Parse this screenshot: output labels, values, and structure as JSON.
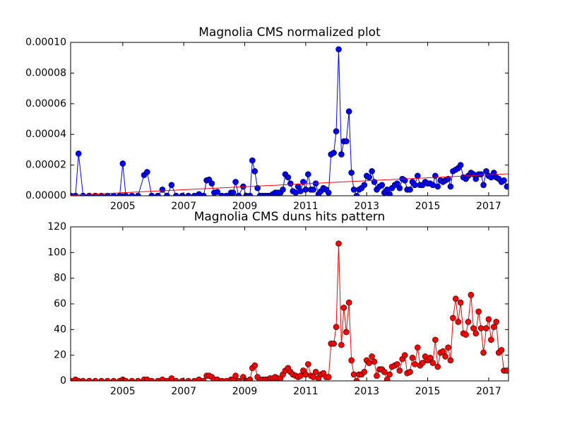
{
  "chart_data": [
    {
      "type": "line",
      "title": "Magnolia CMS normalized plot",
      "xlim": [
        2003.29,
        2017.65
      ],
      "xticks": [
        2005,
        2007,
        2009,
        2011,
        2013,
        2015,
        2017
      ],
      "ylim": [
        0,
        0.0001
      ],
      "yticks": [
        {
          "value": 0,
          "label": "0.00000"
        },
        {
          "value": 2e-05,
          "label": "0.00002"
        },
        {
          "value": 4e-05,
          "label": "0.00004"
        },
        {
          "value": 6e-05,
          "label": "0.00006"
        },
        {
          "value": 8e-05,
          "label": "0.00008"
        },
        {
          "value": 0.0001,
          "label": "0.00010"
        }
      ],
      "grid": false,
      "series": [
        {
          "color": "#0000ff",
          "markers": true,
          "x": [
            2003.3,
            2003.45,
            2003.55,
            2003.7,
            2003.9,
            2004.1,
            2004.3,
            2004.5,
            2004.7,
            2004.9,
            2005.0,
            2005.1,
            2005.3,
            2005.5,
            2005.7,
            2005.8,
            2005.95,
            2006.15,
            2006.3,
            2006.45,
            2006.6,
            2006.75,
            2006.95,
            2007.15,
            2007.35,
            2007.5,
            2007.65,
            2007.75,
            2007.83,
            2007.92,
            2008.0,
            2008.1,
            2008.25,
            2008.4,
            2008.55,
            2008.62,
            2008.7,
            2008.8,
            2008.95,
            2009.05,
            2009.17,
            2009.25,
            2009.33,
            2009.42,
            2009.5,
            2009.58,
            2009.67,
            2009.75,
            2009.83,
            2009.92,
            2010.0,
            2010.08,
            2010.17,
            2010.25,
            2010.33,
            2010.42,
            2010.5,
            2010.58,
            2010.67,
            2010.75,
            2010.83,
            2010.92,
            2011.0,
            2011.08,
            2011.17,
            2011.25,
            2011.33,
            2011.42,
            2011.5,
            2011.58,
            2011.67,
            2011.75,
            2011.83,
            2011.92,
            2012.0,
            2012.08,
            2012.17,
            2012.25,
            2012.33,
            2012.42,
            2012.5,
            2012.58,
            2012.67,
            2012.75,
            2012.83,
            2012.92,
            2013.0,
            2013.08,
            2013.17,
            2013.25,
            2013.33,
            2013.42,
            2013.5,
            2013.58,
            2013.67,
            2013.75,
            2013.83,
            2013.92,
            2014.0,
            2014.08,
            2014.17,
            2014.25,
            2014.33,
            2014.42,
            2014.5,
            2014.58,
            2014.67,
            2014.75,
            2014.83,
            2014.92,
            2015.0,
            2015.08,
            2015.17,
            2015.25,
            2015.33,
            2015.42,
            2015.5,
            2015.58,
            2015.67,
            2015.75,
            2015.83,
            2015.92,
            2016.0,
            2016.08,
            2016.17,
            2016.25,
            2016.33,
            2016.42,
            2016.5,
            2016.58,
            2016.67,
            2016.75,
            2016.83,
            2016.92,
            2017.0,
            2017.08,
            2017.17,
            2017.25,
            2017.33,
            2017.42,
            2017.5,
            2017.6
          ],
          "values": [
            0,
            0,
            2.75e-05,
            0,
            0,
            0,
            0,
            0,
            0,
            0,
            2.1e-05,
            0,
            0,
            0,
            1.35e-05,
            1.55e-05,
            0,
            0,
            4e-06,
            0,
            7e-06,
            0,
            0,
            0,
            0,
            1e-06,
            0,
            1e-05,
            1.05e-05,
            8e-06,
            2e-06,
            2.5e-06,
            0,
            0,
            2e-06,
            2e-06,
            9e-06,
            0,
            6e-06,
            0,
            0,
            2.3e-05,
            1.6e-05,
            5e-06,
            0,
            0,
            0,
            0,
            0,
            1e-06,
            2e-06,
            2e-06,
            2e-06,
            4e-06,
            1.4e-05,
            1.2e-05,
            8e-06,
            3e-06,
            2e-06,
            6e-06,
            3e-06,
            9e-06,
            4e-06,
            1.4e-05,
            4e-06,
            4e-06,
            8e-06,
            1e-06,
            3e-06,
            5e-06,
            4e-06,
            2e-06,
            2.7e-05,
            2.8e-05,
            4.2e-05,
            9.55e-05,
            2.7e-05,
            3.55e-05,
            3.55e-05,
            5.5e-05,
            1.5e-05,
            4e-06,
            0,
            4e-06,
            5e-06,
            7e-06,
            1.3e-05,
            1.2e-05,
            1.6e-05,
            9e-06,
            4e-06,
            6e-06,
            7e-06,
            2e-06,
            4e-06,
            1e-06,
            5e-06,
            7e-06,
            8e-06,
            5e-06,
            1.1e-05,
            1e-05,
            4e-06,
            4e-06,
            9e-06,
            7e-06,
            1.3e-05,
            7e-06,
            7e-06,
            9e-06,
            8e-06,
            8e-06,
            7e-06,
            1.3e-05,
            6e-06,
            1e-05,
            9e-06,
            1e-05,
            1.1e-05,
            6e-06,
            1.6e-05,
            1.7e-05,
            1.8e-05,
            2e-05,
            1.2e-05,
            1.1e-05,
            1.3e-05,
            1.5e-05,
            1.4e-05,
            1.1e-05,
            1.4e-05,
            1.4e-05,
            7e-06,
            1.6e-05,
            1.3e-05,
            1.2e-05,
            1.5e-05,
            1.2e-05,
            1.1e-05,
            9e-06,
            1e-05,
            6e-06
          ]
        },
        {
          "color": "#ff0000",
          "markers": false,
          "x": [
            2003.29,
            2017.65
          ],
          "values": [
            3e-07,
            1.43e-05
          ]
        }
      ]
    },
    {
      "type": "line",
      "title": "Magnolia CMS duns hits pattern",
      "xlim": [
        2003.29,
        2017.65
      ],
      "xticks": [
        2005,
        2007,
        2009,
        2011,
        2013,
        2015,
        2017
      ],
      "ylim": [
        0,
        120
      ],
      "yticks": [
        0,
        20,
        40,
        60,
        80,
        100,
        120
      ],
      "grid": false,
      "series": [
        {
          "color": "#ff0000",
          "markers": true,
          "x": [
            2003.3,
            2003.45,
            2003.55,
            2003.7,
            2003.9,
            2004.1,
            2004.3,
            2004.5,
            2004.7,
            2004.9,
            2005.0,
            2005.1,
            2005.3,
            2005.5,
            2005.7,
            2005.8,
            2005.95,
            2006.15,
            2006.3,
            2006.45,
            2006.6,
            2006.75,
            2006.95,
            2007.15,
            2007.35,
            2007.5,
            2007.65,
            2007.75,
            2007.83,
            2007.92,
            2008.0,
            2008.1,
            2008.25,
            2008.4,
            2008.55,
            2008.62,
            2008.7,
            2008.8,
            2008.95,
            2009.05,
            2009.17,
            2009.25,
            2009.33,
            2009.42,
            2009.5,
            2009.58,
            2009.67,
            2009.75,
            2009.83,
            2009.92,
            2010.0,
            2010.08,
            2010.17,
            2010.25,
            2010.33,
            2010.42,
            2010.5,
            2010.58,
            2010.67,
            2010.75,
            2010.83,
            2010.92,
            2011.0,
            2011.08,
            2011.17,
            2011.25,
            2011.33,
            2011.42,
            2011.5,
            2011.58,
            2011.67,
            2011.75,
            2011.83,
            2011.92,
            2012.0,
            2012.08,
            2012.17,
            2012.25,
            2012.33,
            2012.42,
            2012.5,
            2012.58,
            2012.67,
            2012.75,
            2012.83,
            2012.92,
            2013.0,
            2013.08,
            2013.17,
            2013.25,
            2013.33,
            2013.42,
            2013.5,
            2013.58,
            2013.67,
            2013.75,
            2013.83,
            2013.92,
            2014.0,
            2014.08,
            2014.17,
            2014.25,
            2014.33,
            2014.42,
            2014.5,
            2014.58,
            2014.67,
            2014.75,
            2014.83,
            2014.92,
            2015.0,
            2015.08,
            2015.17,
            2015.25,
            2015.33,
            2015.42,
            2015.5,
            2015.58,
            2015.67,
            2015.75,
            2015.83,
            2015.92,
            2016.0,
            2016.08,
            2016.17,
            2016.25,
            2016.33,
            2016.42,
            2016.5,
            2016.58,
            2016.67,
            2016.75,
            2016.83,
            2016.92,
            2017.0,
            2017.08,
            2017.17,
            2017.25,
            2017.33,
            2017.42,
            2017.5,
            2017.6
          ],
          "values": [
            0,
            1,
            0,
            0,
            0,
            0,
            0,
            0,
            0,
            0,
            1,
            0,
            0,
            0,
            1,
            1,
            0,
            0,
            1,
            0,
            2,
            0,
            0,
            0,
            0,
            1,
            0,
            4,
            4,
            3,
            1,
            1,
            0,
            0,
            1,
            1,
            4,
            0,
            3,
            0,
            1,
            10,
            12,
            3,
            0,
            1,
            1,
            1,
            2,
            2,
            3,
            2,
            2,
            5,
            8,
            10,
            7,
            5,
            4,
            3,
            4,
            8,
            5,
            13,
            4,
            3,
            7,
            2,
            5,
            6,
            3,
            3,
            29,
            29,
            42,
            107,
            28,
            57,
            38,
            61,
            16,
            5,
            0,
            5,
            5,
            7,
            16,
            14,
            19,
            15,
            4,
            9,
            9,
            7,
            1,
            5,
            11,
            12,
            13,
            8,
            17,
            20,
            6,
            7,
            18,
            13,
            26,
            12,
            14,
            19,
            16,
            18,
            14,
            32,
            11,
            22,
            23,
            19,
            26,
            16,
            49,
            64,
            46,
            61,
            37,
            36,
            46,
            67,
            41,
            37,
            54,
            41,
            22,
            41,
            48,
            32,
            42,
            46,
            22,
            24,
            8,
            8
          ]
        }
      ]
    }
  ]
}
